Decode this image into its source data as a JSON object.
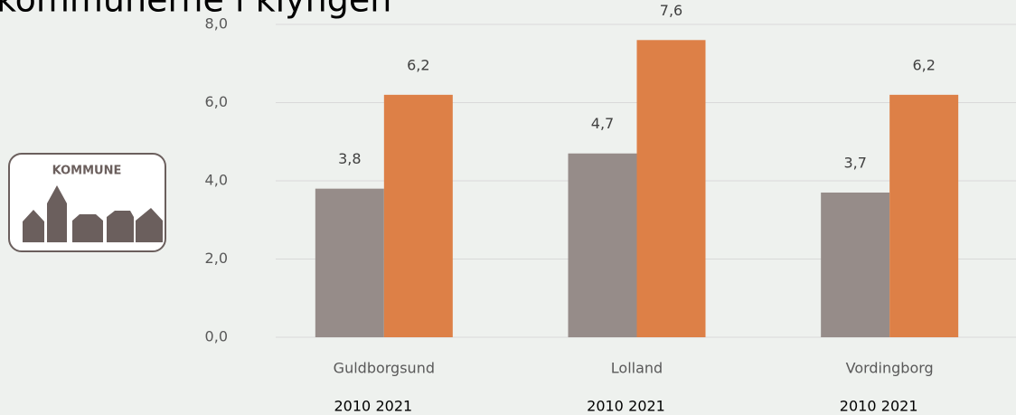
{
  "logo_text": "KOMMUNE",
  "chart_data": {
    "type": "bar",
    "title": "kommunerne i klyngen",
    "categories": [
      "Guldborgsund",
      "Lolland",
      "Vordingborg"
    ],
    "series": [
      {
        "name": "2010",
        "color": "#968c89",
        "values": [
          3.8,
          4.7,
          3.7
        ],
        "value_labels": [
          "3,8",
          "4,7",
          "3,7"
        ]
      },
      {
        "name": "2021",
        "color": "#dd8047",
        "values": [
          6.2,
          7.6,
          6.2
        ],
        "value_labels": [
          "6,2",
          "7,6",
          "6,2"
        ]
      }
    ],
    "ylim": [
      0,
      8
    ],
    "yticks": [
      {
        "value": 0,
        "label": "0,0"
      },
      {
        "value": 2,
        "label": "2,0"
      },
      {
        "value": 4,
        "label": "4,0"
      },
      {
        "value": 6,
        "label": "6,0"
      },
      {
        "value": 8,
        "label": "8,0"
      }
    ],
    "grid": true
  }
}
